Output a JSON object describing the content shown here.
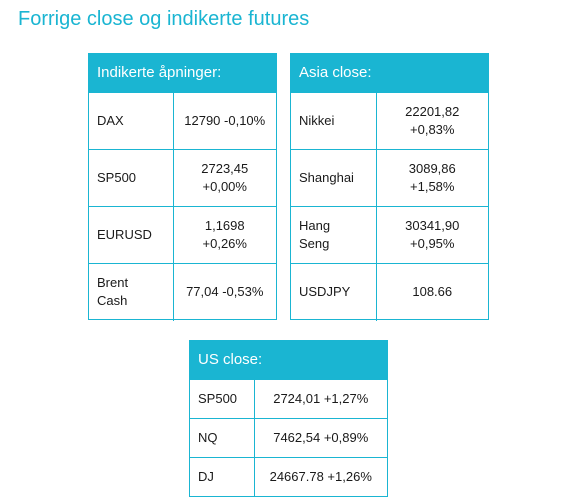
{
  "title": "Forrige close og indikerte futures",
  "panels": {
    "indik": {
      "header": "Indikerte åpninger:",
      "rows": [
        {
          "label": [
            "DAX"
          ],
          "value": [
            "12790 -0,10%"
          ]
        },
        {
          "label": [
            "SP500"
          ],
          "value": [
            "2723,45",
            "+0,00%"
          ]
        },
        {
          "label": [
            "EURUSD"
          ],
          "value": [
            "1,1698",
            "+0,26%"
          ]
        },
        {
          "label": [
            "Brent",
            "Cash"
          ],
          "value": [
            "77,04 -0,53%"
          ]
        }
      ]
    },
    "asia": {
      "header": "Asia close:",
      "rows": [
        {
          "label": [
            "Nikkei"
          ],
          "value": [
            "22201,82",
            "+0,83%"
          ]
        },
        {
          "label": [
            "Shanghai"
          ],
          "value": [
            "3089,86",
            "+1,58%"
          ]
        },
        {
          "label": [
            "Hang",
            "Seng"
          ],
          "value": [
            "30341,90",
            "+0,95%"
          ]
        },
        {
          "label": [
            "USDJPY"
          ],
          "value": [
            "108.66"
          ]
        }
      ]
    },
    "us": {
      "header": "US close:",
      "rows": [
        {
          "label": [
            "SP500"
          ],
          "value": [
            "2724,01 +1,27%"
          ]
        },
        {
          "label": [
            "NQ"
          ],
          "value": [
            "7462,54 +0,89%"
          ]
        },
        {
          "label": [
            "DJ"
          ],
          "value": [
            "24667.78 +1,26%"
          ]
        }
      ]
    }
  },
  "colors": {
    "accent": "#1ab5d2",
    "text": "#1a1a1a",
    "header_text": "#ffffff"
  }
}
